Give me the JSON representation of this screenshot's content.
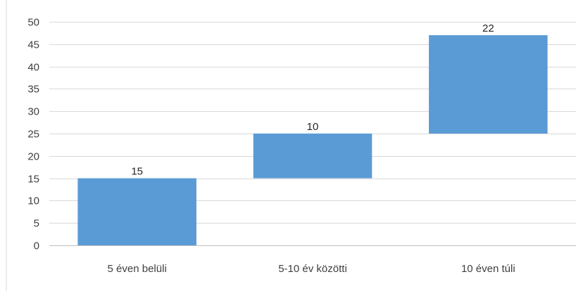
{
  "chart_data": {
    "type": "bar",
    "subtype": "waterfall",
    "categories": [
      "5 éven belüli",
      "5-10 év közötti",
      "10 éven túli"
    ],
    "values": [
      15,
      10,
      22
    ],
    "bar_bases": [
      0,
      15,
      25
    ],
    "bar_tops": [
      15,
      25,
      47
    ],
    "data_labels": [
      "15",
      "10",
      "22"
    ],
    "title": "",
    "xlabel": "",
    "ylabel": "",
    "ylim": [
      0,
      50
    ],
    "yticks": [
      0,
      5,
      10,
      15,
      20,
      25,
      30,
      35,
      40,
      45,
      50
    ],
    "ytick_labels": [
      "0",
      "5",
      "10",
      "15",
      "20",
      "25",
      "30",
      "35",
      "40",
      "45",
      "50"
    ],
    "grid": true,
    "legend": "none",
    "colors": {
      "bar": "#5B9BD5",
      "grid": "#D9D9D9",
      "axis": "#BFBFBF",
      "text": "#404040"
    }
  }
}
